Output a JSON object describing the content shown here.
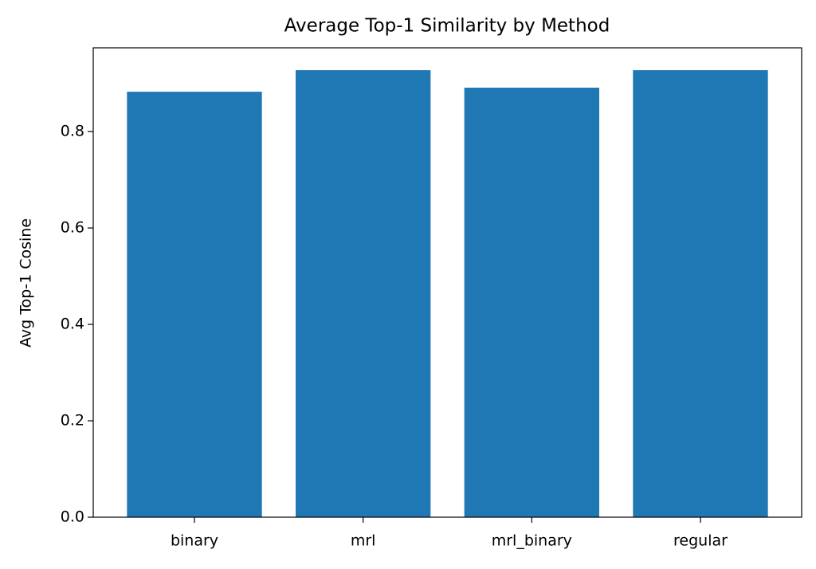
{
  "chart_data": {
    "type": "bar",
    "title": "Average Top-1 Similarity by Method",
    "ylabel": "Avg Top-1 Cosine",
    "categories": [
      "binary",
      "mrl",
      "mrl_binary",
      "regular"
    ],
    "values": [
      0.8826,
      0.9273,
      0.891,
      0.9273
    ],
    "color": "#1f77b4",
    "ylim": [
      0,
      0.9737
    ],
    "yticks": [
      {
        "value": 0,
        "label": "0.0"
      },
      0.2,
      0.4,
      0.6,
      0.8
    ],
    "grid": false
  }
}
